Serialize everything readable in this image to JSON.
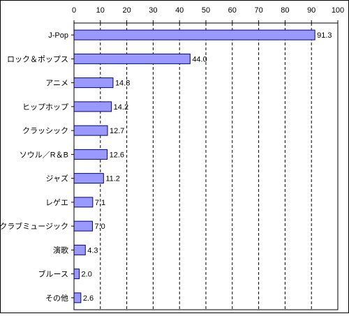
{
  "chart_data": {
    "type": "bar",
    "orientation": "horizontal",
    "categories": [
      "J-Pop",
      "ロック＆ポップス",
      "アニメ",
      "ヒップホップ",
      "クラッシック",
      "ソウル／R＆B",
      "ジャズ",
      "レゲエ",
      "クラブミュージック",
      "演歌",
      "ブルース",
      "その他"
    ],
    "values": [
      91.3,
      44.0,
      14.8,
      14.2,
      12.7,
      12.6,
      11.2,
      7.1,
      7.0,
      4.3,
      2.0,
      2.6
    ],
    "value_labels": [
      "91.3",
      "44.0",
      "14.8",
      "14.2",
      "12.7",
      "12.6",
      "11.2",
      "7.1",
      "7.0",
      "4.3",
      "2.0",
      "2.6"
    ],
    "xlim": [
      0,
      100
    ],
    "xticks": [
      0,
      10,
      20,
      30,
      40,
      50,
      60,
      70,
      80,
      90,
      100
    ],
    "x_axis_position": "top",
    "grid": "vertical dashed",
    "bar_color": "#9999ff",
    "bar_edge_color": "#000080"
  }
}
